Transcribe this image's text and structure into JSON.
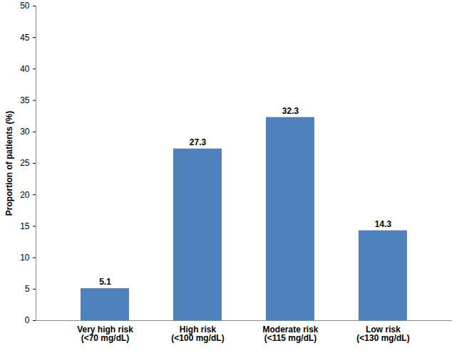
{
  "chart_data": {
    "type": "bar",
    "categories": [
      "Very high risk\n(<70 mg/dL)",
      "High risk\n(<100 mg/dL)",
      "Moderate risk\n(<115 mg/dL)",
      "Low risk\n(<130 mg/dL)"
    ],
    "values": [
      5.1,
      27.3,
      32.3,
      14.3
    ],
    "color": "#4f81bd",
    "y_label": "Proportion of patients (%)",
    "ylim": [
      0,
      50
    ],
    "yticks": [
      0,
      5,
      10,
      15,
      20,
      25,
      30,
      35,
      40,
      45,
      50
    ],
    "grid": false,
    "data_labels": true
  }
}
